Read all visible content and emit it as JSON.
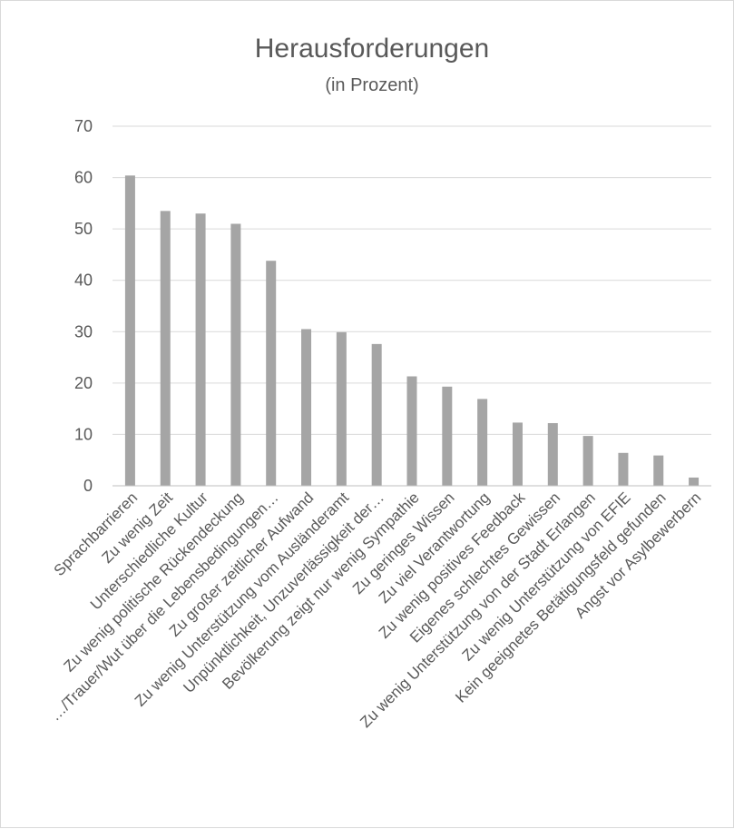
{
  "chart_data": {
    "type": "bar",
    "title": "Herausforderungen",
    "subtitle": "(in Prozent)",
    "xlabel": "",
    "ylabel": "",
    "ylim": [
      0,
      70
    ],
    "yticks": [
      "0",
      "10",
      "20",
      "30",
      "40",
      "50",
      "60",
      "70"
    ],
    "grid": true,
    "legend": "none",
    "bar_color": "#a5a5a5",
    "categories": [
      "Sprachbarrieren",
      "Zu wenig Zeit",
      "Unterschiedliche Kultur",
      "Zu wenig politische Rückendeckung",
      "…/Trauer/Wut über die Lebensbedingungen…",
      "Zu großer zeitlicher Aufwand",
      "Zu wenig Unterstützung vom Ausländeramt",
      "Unpünktlichkeit, Unzuverlässigkeit der…",
      "Bevölkerung zeigt nur wenig Sympathie",
      "Zu geringes Wissen",
      "Zu viel Verantwortung",
      "Zu wenig positives Feedback",
      "Eigenes schlechtes Gewissen",
      "Zu wenig Unterstützung von der Stadt Erlangen",
      "Zu wenig Unterstützung von EFIE",
      "Kein geeignetes Betätigungsfeld gefunden",
      "Angst vor Asylbewerbern"
    ],
    "values": [
      60.4,
      53.5,
      53.0,
      51.0,
      43.8,
      30.5,
      29.9,
      27.6,
      21.3,
      19.3,
      16.9,
      12.3,
      12.2,
      9.7,
      6.4,
      5.9,
      1.6
    ]
  }
}
